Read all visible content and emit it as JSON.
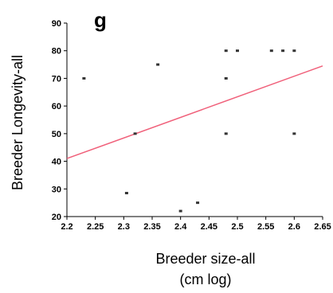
{
  "chart_data": {
    "type": "scatter",
    "panel_label": "g",
    "title": "",
    "xlabel": "Breeder size-all",
    "xlabel_unit": "(cm log)",
    "ylabel": "Breeder Longevity-all",
    "xlim": [
      2.2,
      2.65
    ],
    "ylim": [
      20,
      90
    ],
    "x_ticks": [
      "2.2",
      "2.25",
      "2.3",
      "2.35",
      "2.4",
      "2.45",
      "2.5",
      "2.55",
      "2.6",
      "2.65"
    ],
    "y_ticks": [
      "20",
      "30",
      "40",
      "50",
      "60",
      "70",
      "80",
      "90"
    ],
    "grid": false,
    "legend": "none",
    "points": [
      {
        "x": 2.23,
        "y": 70
      },
      {
        "x": 2.305,
        "y": 28.5
      },
      {
        "x": 2.32,
        "y": 50
      },
      {
        "x": 2.36,
        "y": 75
      },
      {
        "x": 2.4,
        "y": 22
      },
      {
        "x": 2.43,
        "y": 25
      },
      {
        "x": 2.48,
        "y": 80
      },
      {
        "x": 2.48,
        "y": 70
      },
      {
        "x": 2.48,
        "y": 50
      },
      {
        "x": 2.5,
        "y": 80
      },
      {
        "x": 2.56,
        "y": 80
      },
      {
        "x": 2.58,
        "y": 80
      },
      {
        "x": 2.6,
        "y": 80
      },
      {
        "x": 2.6,
        "y": 50
      }
    ],
    "regression_line": {
      "x": [
        2.2,
        2.65
      ],
      "y": [
        41,
        74.5
      ]
    },
    "colors": {
      "points": "#333333",
      "regression_line": "#f0607a",
      "axes": "#000000"
    }
  }
}
